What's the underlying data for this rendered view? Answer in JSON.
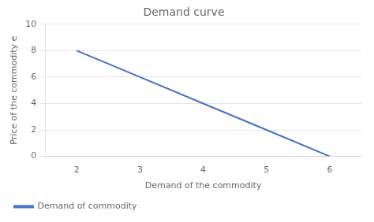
{
  "chart_data": {
    "type": "line",
    "title": "Demand curve",
    "x": [
      2,
      3,
      4,
      5,
      6
    ],
    "series": [
      {
        "name": "Demand of commodity",
        "color": "#4472C4",
        "values": [
          8,
          6,
          4,
          2,
          0
        ]
      }
    ],
    "xlabel": "Demand of the commodity",
    "ylabel": "Price of the commodity e",
    "xlim": [
      1.5,
      6.5
    ],
    "ylim": [
      0,
      10
    ],
    "xticks": [
      2,
      3,
      4,
      5,
      6
    ],
    "yticks": [
      0,
      2,
      4,
      6,
      8,
      10
    ],
    "grid": "y",
    "legend": "lower left"
  }
}
